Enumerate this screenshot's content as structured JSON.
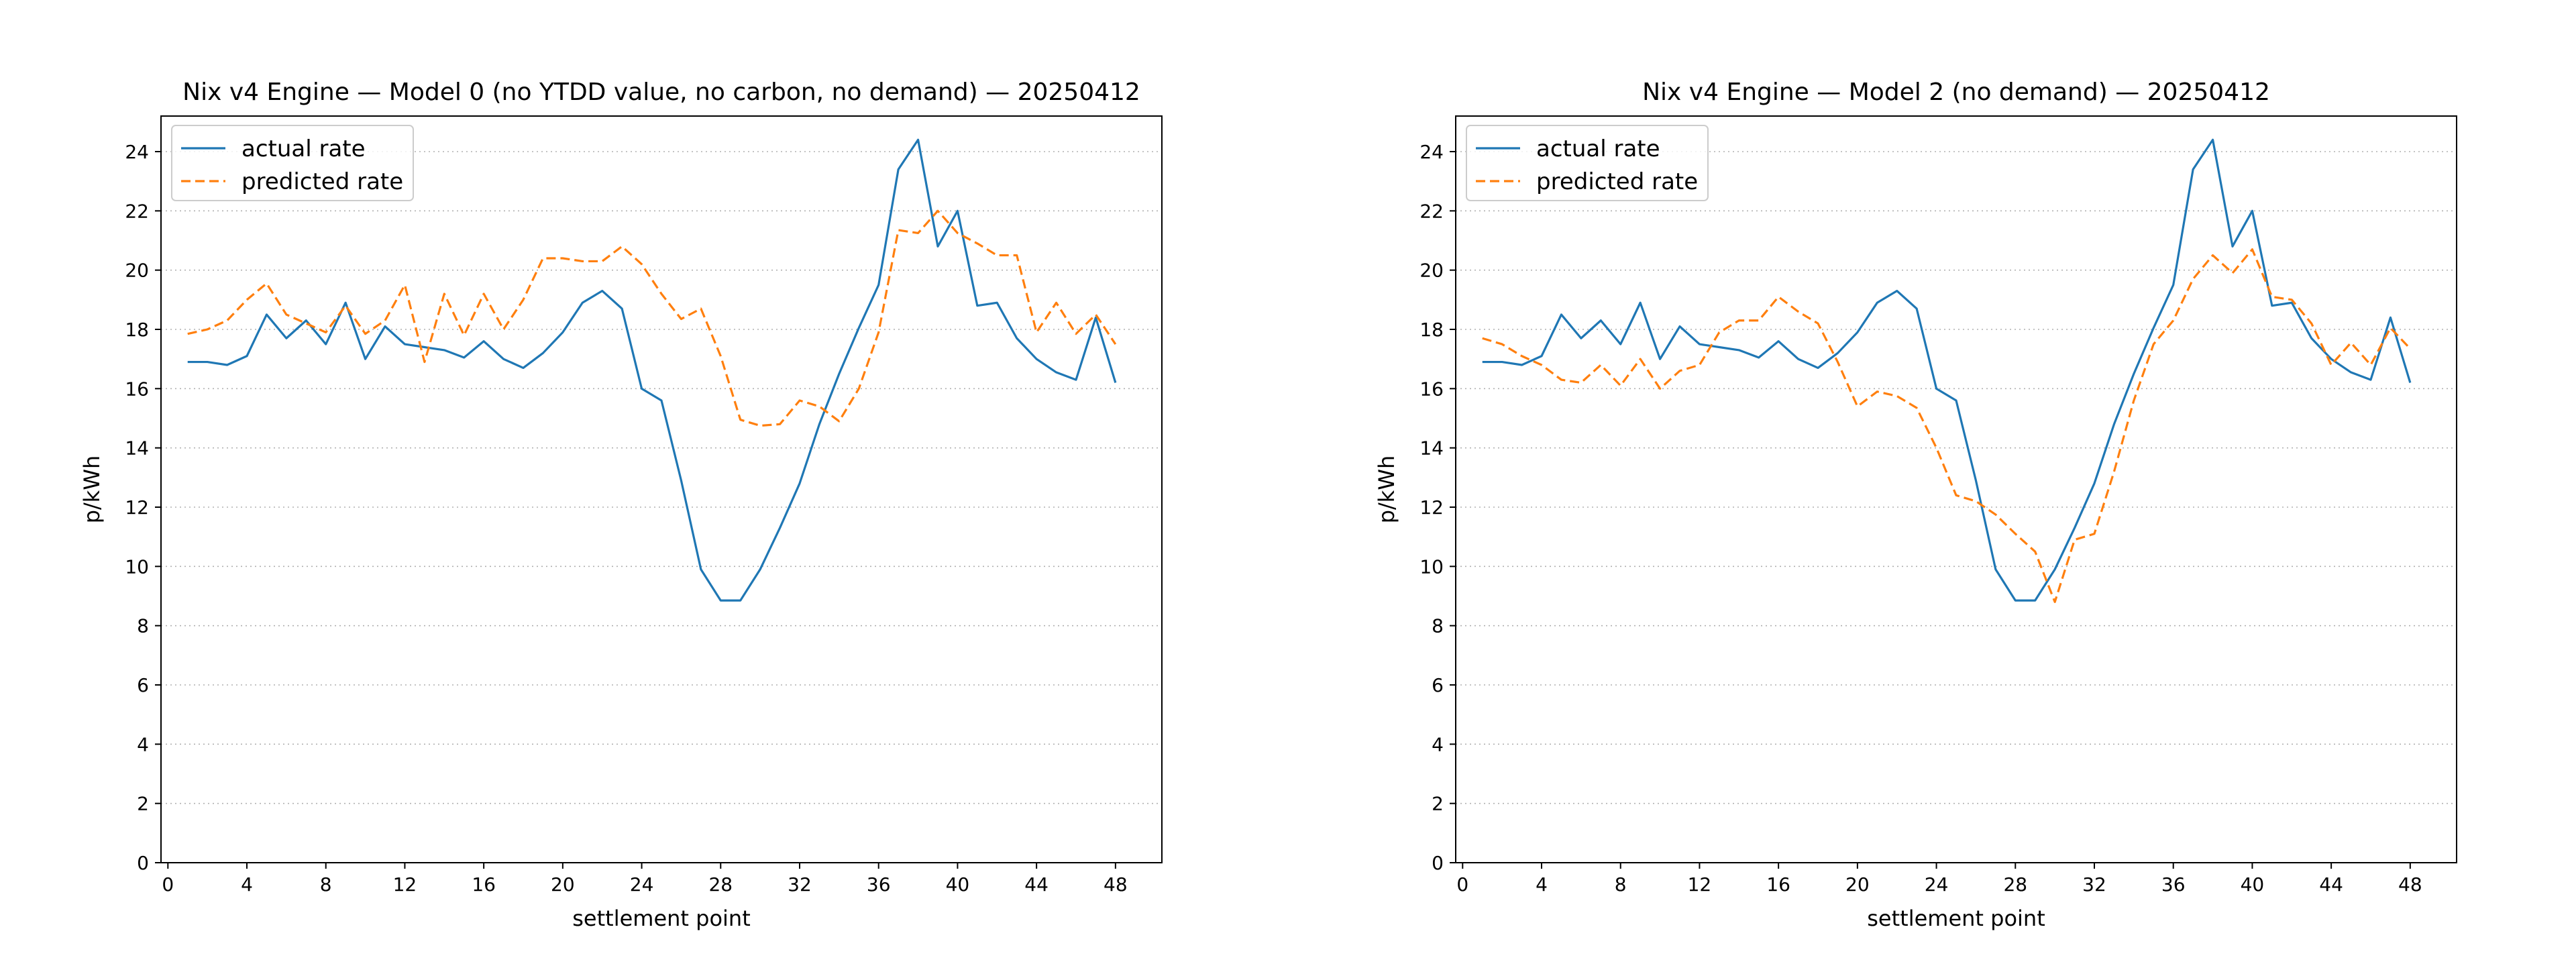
{
  "colors": {
    "actual": "#1f77b4",
    "predicted": "#ff7f0e"
  },
  "chart_data": [
    {
      "type": "line",
      "title": "Nix v4 Engine — Model 0 (no YTDD value, no carbon, no demand) — 20250412",
      "xlabel": "settlement point",
      "ylabel": "p/kWh",
      "xlim": [
        -0.35,
        50.35
      ],
      "ylim": [
        0,
        25.2
      ],
      "xticks": [
        0,
        4,
        8,
        12,
        16,
        20,
        24,
        28,
        32,
        36,
        40,
        44,
        48
      ],
      "yticks": [
        0,
        2,
        4,
        6,
        8,
        10,
        12,
        14,
        16,
        18,
        20,
        22,
        24
      ],
      "grid": "y-dotted",
      "legend_position": "upper left",
      "series": [
        {
          "name": "actual rate",
          "style": "solid",
          "color": "#1f77b4",
          "x": [
            1,
            2,
            3,
            4,
            5,
            6,
            7,
            8,
            9,
            10,
            11,
            12,
            13,
            14,
            15,
            16,
            17,
            18,
            19,
            20,
            21,
            22,
            23,
            24,
            25,
            26,
            27,
            28,
            29,
            30,
            31,
            32,
            33,
            34,
            35,
            36,
            37,
            38,
            39,
            40,
            41,
            42,
            43,
            44,
            45,
            46,
            47,
            48
          ],
          "y": [
            16.9,
            16.9,
            16.8,
            17.1,
            18.5,
            17.7,
            18.3,
            17.5,
            18.9,
            17.0,
            18.1,
            17.5,
            17.4,
            17.3,
            17.05,
            17.6,
            17.0,
            16.7,
            17.2,
            17.9,
            18.9,
            19.3,
            18.7,
            16.0,
            15.6,
            12.9,
            9.9,
            8.85,
            8.85,
            9.9,
            11.3,
            12.8,
            14.8,
            16.5,
            18.05,
            19.5,
            23.4,
            24.4,
            20.8,
            22.0,
            18.8,
            18.9,
            17.7,
            17.0,
            16.55,
            16.3,
            18.4,
            16.2
          ]
        },
        {
          "name": "predicted rate",
          "style": "dashed",
          "color": "#ff7f0e",
          "x": [
            1,
            2,
            3,
            4,
            5,
            6,
            7,
            8,
            9,
            10,
            11,
            12,
            13,
            14,
            15,
            16,
            17,
            18,
            19,
            20,
            21,
            22,
            23,
            24,
            25,
            26,
            27,
            28,
            29,
            30,
            31,
            32,
            33,
            34,
            35,
            36,
            37,
            38,
            39,
            40,
            41,
            42,
            43,
            44,
            45,
            46,
            47,
            48
          ],
          "y": [
            17.85,
            18.0,
            18.3,
            19.0,
            19.55,
            18.5,
            18.2,
            17.9,
            18.8,
            17.85,
            18.3,
            19.5,
            16.9,
            19.2,
            17.8,
            19.2,
            18.0,
            19.0,
            20.4,
            20.4,
            20.3,
            20.3,
            20.8,
            20.2,
            19.2,
            18.35,
            18.7,
            17.1,
            14.95,
            14.75,
            14.8,
            15.6,
            15.4,
            14.9,
            16.0,
            17.9,
            21.35,
            21.25,
            22.0,
            21.25,
            20.9,
            20.5,
            20.5,
            17.9,
            18.9,
            17.85,
            18.5,
            17.5
          ]
        }
      ]
    },
    {
      "type": "line",
      "title": "Nix v4 Engine — Model 2 (no demand) — 20250412",
      "xlabel": "settlement point",
      "ylabel": "p/kWh",
      "xlim": [
        -0.35,
        50.35
      ],
      "ylim": [
        0,
        25.2
      ],
      "xticks": [
        0,
        4,
        8,
        12,
        16,
        20,
        24,
        28,
        32,
        36,
        40,
        44,
        48
      ],
      "yticks": [
        0,
        2,
        4,
        6,
        8,
        10,
        12,
        14,
        16,
        18,
        20,
        22,
        24
      ],
      "grid": "y-dotted",
      "legend_position": "upper left",
      "series": [
        {
          "name": "actual rate",
          "style": "solid",
          "color": "#1f77b4",
          "x": [
            1,
            2,
            3,
            4,
            5,
            6,
            7,
            8,
            9,
            10,
            11,
            12,
            13,
            14,
            15,
            16,
            17,
            18,
            19,
            20,
            21,
            22,
            23,
            24,
            25,
            26,
            27,
            28,
            29,
            30,
            31,
            32,
            33,
            34,
            35,
            36,
            37,
            38,
            39,
            40,
            41,
            42,
            43,
            44,
            45,
            46,
            47,
            48
          ],
          "y": [
            16.9,
            16.9,
            16.8,
            17.1,
            18.5,
            17.7,
            18.3,
            17.5,
            18.9,
            17.0,
            18.1,
            17.5,
            17.4,
            17.3,
            17.05,
            17.6,
            17.0,
            16.7,
            17.2,
            17.9,
            18.9,
            19.3,
            18.7,
            16.0,
            15.6,
            12.9,
            9.9,
            8.85,
            8.85,
            9.9,
            11.3,
            12.8,
            14.8,
            16.5,
            18.05,
            19.5,
            23.4,
            24.4,
            20.8,
            22.0,
            18.8,
            18.9,
            17.7,
            17.0,
            16.55,
            16.3,
            18.4,
            16.2
          ]
        },
        {
          "name": "predicted rate",
          "style": "dashed",
          "color": "#ff7f0e",
          "x": [
            1,
            2,
            3,
            4,
            5,
            6,
            7,
            8,
            9,
            10,
            11,
            12,
            13,
            14,
            15,
            16,
            17,
            18,
            19,
            20,
            21,
            22,
            23,
            24,
            25,
            26,
            27,
            28,
            29,
            30,
            31,
            32,
            33,
            34,
            35,
            36,
            37,
            38,
            39,
            40,
            41,
            42,
            43,
            44,
            45,
            46,
            47,
            48
          ],
          "y": [
            17.7,
            17.5,
            17.1,
            16.8,
            16.3,
            16.2,
            16.8,
            16.1,
            17.0,
            16.0,
            16.6,
            16.8,
            17.9,
            18.3,
            18.3,
            19.1,
            18.6,
            18.2,
            16.9,
            15.4,
            15.9,
            15.75,
            15.35,
            14.0,
            12.4,
            12.2,
            11.75,
            11.1,
            10.5,
            8.8,
            10.9,
            11.1,
            13.2,
            15.6,
            17.5,
            18.3,
            19.7,
            20.5,
            19.9,
            20.7,
            19.1,
            19.0,
            18.2,
            16.8,
            17.55,
            16.8,
            18.05,
            17.35
          ]
        }
      ]
    }
  ]
}
